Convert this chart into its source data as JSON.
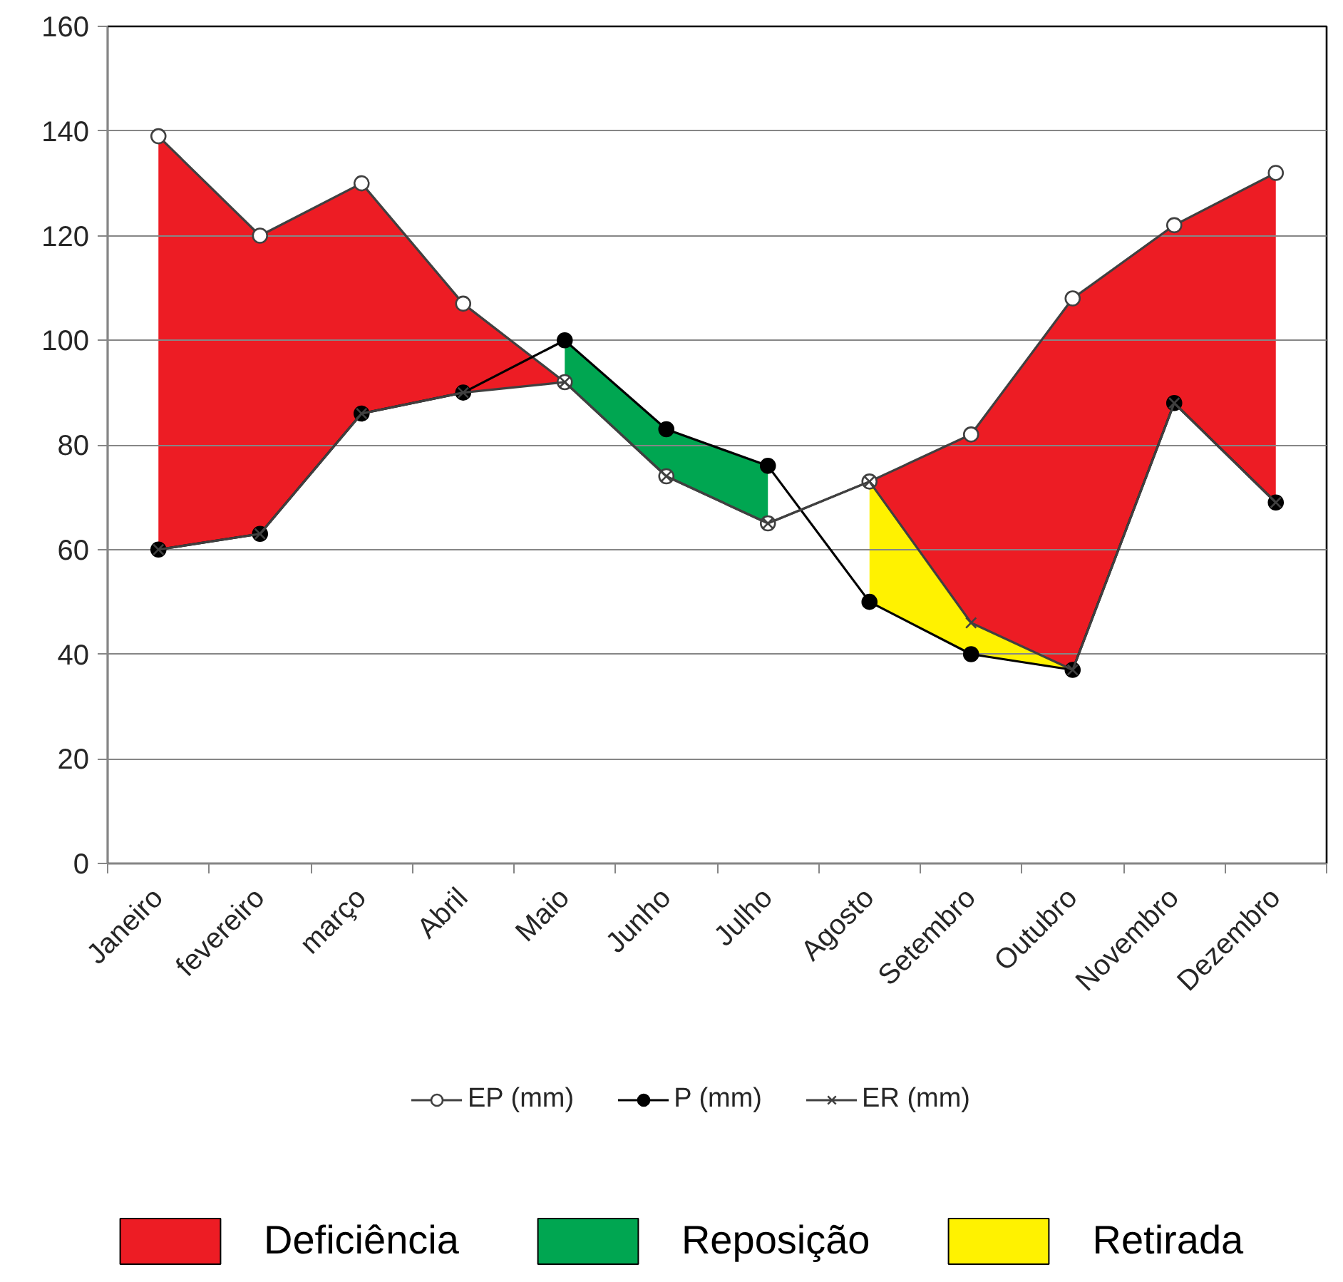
{
  "chart_data": {
    "type": "line",
    "categories": [
      "Janeiro",
      "fevereiro",
      "março",
      "Abril",
      "Maio",
      "Junho",
      "Julho",
      "Agosto",
      "Setembro",
      "Outubro",
      "Novembro",
      "Dezembro"
    ],
    "ylim": [
      0,
      160
    ],
    "yticks": [
      0,
      20,
      40,
      60,
      80,
      100,
      120,
      140,
      160
    ],
    "grid": "y",
    "legend": "bottom",
    "line_style": "solid",
    "series": [
      {
        "name": "EP (mm)",
        "color": "#404040",
        "colors": [
          "#ffffff",
          "#ffffff",
          "#ffffff",
          "#ffffff",
          "#ffffff",
          "#ffffff",
          "#ffffff",
          "#ffffff",
          "#ffffff",
          "#ffffff",
          "#ffffff",
          "#ffffff"
        ],
        "marker": "circle",
        "values": [
          139,
          120,
          130,
          107,
          92,
          74,
          65,
          73,
          82,
          108,
          122,
          132
        ]
      },
      {
        "name": "P (mm)",
        "color": "#000000",
        "marker": "circle",
        "values": [
          60,
          63,
          86,
          90,
          100,
          83,
          76,
          50,
          40,
          37,
          88,
          69
        ]
      },
      {
        "name": "ER (mm)",
        "color": "#404040",
        "marker": "cross",
        "values": [
          60,
          63,
          86,
          90,
          92,
          74,
          65,
          73,
          46,
          37,
          88,
          69
        ]
      },
      {
        "name": "Deficiência",
        "type": "area",
        "color": "#ed1c24",
        "values": [
          null,
          null,
          null,
          null,
          null,
          null,
          null,
          null,
          null,
          null,
          null,
          null
        ],
        "lower": [
          60,
          63,
          86,
          90,
          92,
          null,
          null,
          73,
          46,
          37,
          88,
          69
        ],
        "upper": [
          139,
          120,
          130,
          107,
          92,
          null,
          null,
          73,
          82,
          108,
          122,
          132
        ]
      },
      {
        "name": "Reposição",
        "type": "area",
        "color": "#00a651",
        "values": [
          null,
          null,
          null,
          null,
          null,
          null,
          null,
          null,
          null,
          null,
          null,
          null
        ],
        "lower": [
          null,
          null,
          null,
          null,
          92,
          74,
          65,
          null,
          null,
          null,
          null,
          null
        ],
        "upper": [
          null,
          null,
          null,
          null,
          100,
          83,
          76,
          null,
          null,
          null,
          null,
          null
        ]
      },
      {
        "name": "Retirada",
        "type": "area",
        "color": "#fff200",
        "values": [
          null,
          null,
          null,
          null,
          null,
          null,
          null,
          null,
          null,
          null,
          null,
          null
        ],
        "lower": [
          null,
          null,
          null,
          null,
          null,
          null,
          null,
          50,
          40,
          37,
          null,
          null
        ],
        "upper": [
          null,
          null,
          null,
          null,
          null,
          null,
          null,
          73,
          46,
          37,
          null,
          null
        ]
      }
    ]
  }
}
